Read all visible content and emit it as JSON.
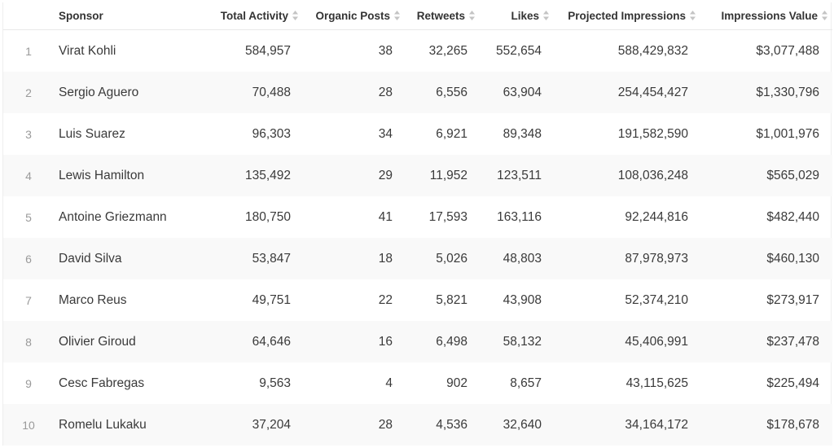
{
  "table": {
    "headers": {
      "sponsor": "Sponsor",
      "total_activity": "Total Activity",
      "organic_posts": "Organic Posts",
      "retweets": "Retweets",
      "likes": "Likes",
      "projected_impressions": "Projected Impressions",
      "impressions_value": "Impressions Value"
    },
    "sort_icon": "sort-up-down-icon",
    "rows": [
      {
        "index": "1",
        "sponsor": "Virat Kohli",
        "total_activity": "584,957",
        "organic_posts": "38",
        "retweets": "32,265",
        "likes": "552,654",
        "projected_impressions": "588,429,832",
        "impressions_value": "$3,077,488"
      },
      {
        "index": "2",
        "sponsor": "Sergio Aguero",
        "total_activity": "70,488",
        "organic_posts": "28",
        "retweets": "6,556",
        "likes": "63,904",
        "projected_impressions": "254,454,427",
        "impressions_value": "$1,330,796"
      },
      {
        "index": "3",
        "sponsor": "Luis Suarez",
        "total_activity": "96,303",
        "organic_posts": "34",
        "retweets": "6,921",
        "likes": "89,348",
        "projected_impressions": "191,582,590",
        "impressions_value": "$1,001,976"
      },
      {
        "index": "4",
        "sponsor": "Lewis Hamilton",
        "total_activity": "135,492",
        "organic_posts": "29",
        "retweets": "11,952",
        "likes": "123,511",
        "projected_impressions": "108,036,248",
        "impressions_value": "$565,029"
      },
      {
        "index": "5",
        "sponsor": "Antoine Griezmann",
        "total_activity": "180,750",
        "organic_posts": "41",
        "retweets": "17,593",
        "likes": "163,116",
        "projected_impressions": "92,244,816",
        "impressions_value": "$482,440"
      },
      {
        "index": "6",
        "sponsor": "David Silva",
        "total_activity": "53,847",
        "organic_posts": "18",
        "retweets": "5,026",
        "likes": "48,803",
        "projected_impressions": "87,978,973",
        "impressions_value": "$460,130"
      },
      {
        "index": "7",
        "sponsor": "Marco Reus",
        "total_activity": "49,751",
        "organic_posts": "22",
        "retweets": "5,821",
        "likes": "43,908",
        "projected_impressions": "52,374,210",
        "impressions_value": "$273,917"
      },
      {
        "index": "8",
        "sponsor": "Olivier Giroud",
        "total_activity": "64,646",
        "organic_posts": "16",
        "retweets": "6,498",
        "likes": "58,132",
        "projected_impressions": "45,406,991",
        "impressions_value": "$237,478"
      },
      {
        "index": "9",
        "sponsor": "Cesc Fabregas",
        "total_activity": "9,563",
        "organic_posts": "4",
        "retweets": "902",
        "likes": "8,657",
        "projected_impressions": "43,115,625",
        "impressions_value": "$225,494"
      },
      {
        "index": "10",
        "sponsor": "Romelu Lukaku",
        "total_activity": "37,204",
        "organic_posts": "28",
        "retweets": "4,536",
        "likes": "32,640",
        "projected_impressions": "34,164,172",
        "impressions_value": "$178,678"
      }
    ]
  }
}
